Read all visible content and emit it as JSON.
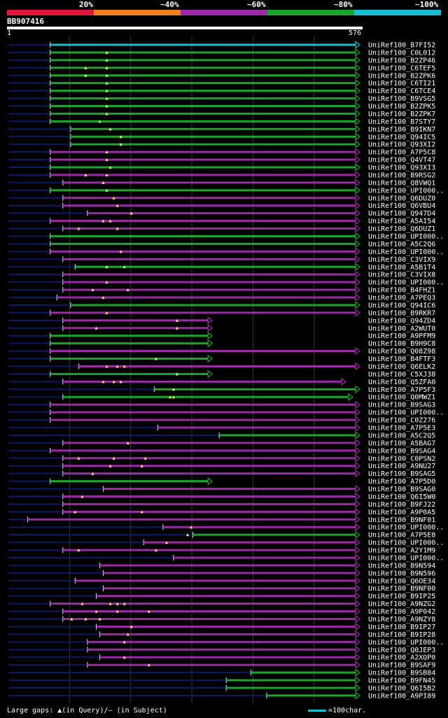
{
  "legend": {
    "segments": [
      {
        "label": "20%",
        "color": "#e3173e"
      },
      {
        "label": "~40%",
        "color": "#f07f1d"
      },
      {
        "label": "~60%",
        "color": "#9b2aa4"
      },
      {
        "label": "~80%",
        "color": "#1aa52e"
      },
      {
        "label": "~100%",
        "color": "#17becf"
      }
    ]
  },
  "query": {
    "id": "BB907416",
    "start": "1",
    "end": "576"
  },
  "footer": {
    "gaps_text": "Large gaps: ▲(in Query)/— (in Subject)",
    "scale_text": "=100char."
  },
  "colors": {
    "purple": "#9b2aa4",
    "green": "#1aa52e",
    "cyan": "#17becf",
    "navy": "#0b1b63",
    "mark": "#ffff66"
  },
  "hits": [
    {
      "name": "UniRef100_B7FI52",
      "color": "cyan",
      "start": 0.119,
      "arrow": true
    },
    {
      "name": "UniRef100_C0L012",
      "color": "green",
      "start": 0.119,
      "arrow": true,
      "marks": [
        0.28
      ]
    },
    {
      "name": "UniRef100_B2ZP46",
      "color": "green",
      "start": 0.119,
      "arrow": true,
      "marks": [
        0.28
      ]
    },
    {
      "name": "UniRef100_C6TEF5",
      "color": "green",
      "start": 0.119,
      "arrow": true,
      "marks": [
        0.22,
        0.28
      ]
    },
    {
      "name": "UniRef100_B2ZPK6",
      "color": "green",
      "start": 0.119,
      "arrow": true,
      "marks": [
        0.22,
        0.28
      ]
    },
    {
      "name": "UniRef100_C6TI21",
      "color": "green",
      "start": 0.119,
      "arrow": true,
      "marks": [
        0.28
      ]
    },
    {
      "name": "UniRef100_C6TCE4",
      "color": "green",
      "start": 0.119,
      "arrow": true,
      "marks": [
        0.28
      ]
    },
    {
      "name": "UniRef100_B9VSG5",
      "color": "green",
      "start": 0.119,
      "arrow": true,
      "marks": [
        0.28
      ]
    },
    {
      "name": "UniRef100_B2ZPK5",
      "color": "green",
      "start": 0.119,
      "arrow": true,
      "marks": [
        0.28
      ]
    },
    {
      "name": "UniRef100_B2ZPK7",
      "color": "green",
      "start": 0.119,
      "arrow": true,
      "marks": [
        0.28
      ]
    },
    {
      "name": "UniRef100_B7STY7",
      "color": "green",
      "start": 0.119,
      "arrow": true,
      "marks": [
        0.26
      ]
    },
    {
      "name": "UniRef100_B9IKN7",
      "color": "green",
      "start": 0.177,
      "arrow": true,
      "marks": [
        0.29
      ]
    },
    {
      "name": "UniRef100_Q94IC5",
      "color": "green",
      "start": 0.177,
      "arrow": true,
      "marks": [
        0.32
      ]
    },
    {
      "name": "UniRef100_Q93XI2",
      "color": "green",
      "start": 0.177,
      "arrow": true,
      "marks": [
        0.32
      ]
    },
    {
      "name": "UniRef100_A7P5C8",
      "color": "purple",
      "start": 0.119,
      "arrow": true,
      "marks": [
        0.28
      ]
    },
    {
      "name": "UniRef100_Q4VT47",
      "color": "purple",
      "start": 0.119,
      "arrow": true,
      "marks": [
        0.28
      ]
    },
    {
      "name": "UniRef100_Q93XI3",
      "color": "green",
      "start": 0.119,
      "arrow": true,
      "marks": [
        0.29
      ]
    },
    {
      "name": "UniRef100_B9RSG2",
      "color": "purple",
      "start": 0.119,
      "arrow": true,
      "marks": [
        0.22,
        0.28
      ]
    },
    {
      "name": "UniRef100_Q8VWQ1",
      "color": "purple",
      "start": 0.155,
      "arrow": true,
      "marks": [
        0.27
      ]
    },
    {
      "name": "UniRef100_UPI000..",
      "color": "green",
      "start": 0.119,
      "arrow": true,
      "marks": [
        0.28
      ]
    },
    {
      "name": "UniRef100_Q6DUZ0",
      "color": "purple",
      "start": 0.155,
      "arrow": true,
      "marks": [
        0.3
      ]
    },
    {
      "name": "UniRef100_Q6VBU4",
      "color": "purple",
      "start": 0.155,
      "arrow": true,
      "marks": [
        0.31
      ]
    },
    {
      "name": "UniRef100_Q947D4",
      "color": "purple",
      "start": 0.225,
      "arrow": true,
      "marks": [
        0.35
      ]
    },
    {
      "name": "UniRef100_A5AI54",
      "color": "purple",
      "start": 0.119,
      "arrow": true,
      "marks": [
        0.27,
        0.29
      ]
    },
    {
      "name": "UniRef100_Q6DUZ1",
      "color": "purple",
      "start": 0.155,
      "arrow": true,
      "marks": [
        0.2,
        0.31
      ]
    },
    {
      "name": "UniRef100_UPI000..",
      "color": "green",
      "start": 0.119,
      "arrow": true
    },
    {
      "name": "UniRef100_A5C2Q6",
      "color": "green",
      "start": 0.119,
      "arrow": true
    },
    {
      "name": "UniRef100_UPI000..",
      "color": "purple",
      "start": 0.119,
      "arrow": true,
      "marks": [
        0.32
      ]
    },
    {
      "name": "UniRef100_C3VIX9",
      "color": "purple",
      "start": 0.155,
      "arrow": true
    },
    {
      "name": "UniRef100_A5B1T4",
      "color": "green",
      "start": 0.19,
      "arrow": true,
      "marks": [
        0.28,
        0.33
      ]
    },
    {
      "name": "UniRef100_C3VIX8",
      "color": "purple",
      "start": 0.155,
      "arrow": true
    },
    {
      "name": "UniRef100_UPI000..",
      "color": "purple",
      "start": 0.155,
      "arrow": true,
      "marks": [
        0.28
      ]
    },
    {
      "name": "UniRef100_B4FHZ1",
      "color": "purple",
      "start": 0.155,
      "arrow": true,
      "marks": [
        0.24,
        0.34
      ]
    },
    {
      "name": "UniRef100_A7PEQ3",
      "color": "purple",
      "start": 0.138,
      "arrow": true,
      "marks": [
        0.27
      ]
    },
    {
      "name": "UniRef100_Q94IC6",
      "color": "green",
      "start": 0.177,
      "arrow": true
    },
    {
      "name": "UniRef100_B9RKR7",
      "color": "purple",
      "start": 0.119,
      "arrow": true,
      "marks": [
        0.28
      ]
    },
    {
      "name": "UniRef100_Q94ZD4",
      "color": "purple",
      "start": 0.155,
      "end": 0.58,
      "arrow": true,
      "marks": [
        0.48
      ]
    },
    {
      "name": "UniRef100_A2WUT0",
      "color": "purple",
      "start": 0.155,
      "end": 0.58,
      "arrow": true,
      "marks": [
        0.25,
        0.48
      ]
    },
    {
      "name": "UniRef100_A9PFM9",
      "color": "green",
      "start": 0.119,
      "end": 0.58,
      "arrow": true
    },
    {
      "name": "UniRef100_B9H9C8",
      "color": "green",
      "start": 0.119,
      "end": 0.58,
      "arrow": true
    },
    {
      "name": "UniRef100_Q08Z98",
      "color": "purple",
      "start": 0.119,
      "arrow": true
    },
    {
      "name": "UniRef100_B4FTF3",
      "color": "green",
      "start": 0.119,
      "end": 0.58,
      "arrow": true,
      "marks": [
        0.42
      ]
    },
    {
      "name": "UniRef100_Q6ELK2",
      "color": "purple",
      "start": 0.2,
      "arrow": true,
      "marks": [
        0.28,
        0.31,
        0.33
      ]
    },
    {
      "name": "UniRef100_C5XJ38",
      "color": "green",
      "start": 0.119,
      "end": 0.58,
      "arrow": true,
      "marks": [
        0.48
      ]
    },
    {
      "name": "UniRef100_Q5ZFA0",
      "color": "purple",
      "start": 0.155,
      "end": 0.96,
      "arrow": true,
      "marks": [
        0.27,
        0.3,
        0.32
      ]
    },
    {
      "name": "UniRef100_A7P5F3",
      "color": "green",
      "start": 0.415,
      "arrow": true,
      "marks": [
        0.47
      ]
    },
    {
      "name": "UniRef100_Q0MWZ1",
      "color": "green",
      "start": 0.155,
      "end": 0.98,
      "arrow": true,
      "marks": [
        0.46,
        0.47
      ]
    },
    {
      "name": "UniRef100_B9SAG3",
      "color": "purple",
      "start": 0.119,
      "arrow": true
    },
    {
      "name": "UniRef100_UPI000..",
      "color": "purple",
      "start": 0.119,
      "arrow": true
    },
    {
      "name": "UniRef100_C0Z276",
      "color": "purple",
      "start": 0.119,
      "arrow": true
    },
    {
      "name": "UniRef100_A7P5E3",
      "color": "purple",
      "start": 0.425,
      "arrow": true
    },
    {
      "name": "UniRef100_A5C2Q5",
      "color": "green",
      "start": 0.6,
      "arrow": true
    },
    {
      "name": "UniRef100_A5BAG7",
      "color": "purple",
      "start": 0.155,
      "arrow": true,
      "marks": [
        0.34
      ]
    },
    {
      "name": "UniRef100_B9SAG4",
      "color": "purple",
      "start": 0.119,
      "arrow": true
    },
    {
      "name": "UniRef100_C0PSN2",
      "color": "purple",
      "start": 0.155,
      "arrow": true,
      "marks": [
        0.2,
        0.3,
        0.39
      ]
    },
    {
      "name": "UniRef100_A9NU27",
      "color": "purple",
      "start": 0.155,
      "arrow": true,
      "marks": [
        0.29,
        0.38
      ]
    },
    {
      "name": "UniRef100_B9SAG5",
      "color": "purple",
      "start": 0.155,
      "arrow": true,
      "marks": [
        0.24
      ]
    },
    {
      "name": "UniRef100_A7P5D0",
      "color": "green",
      "start": 0.119,
      "end": 0.58,
      "arrow": true
    },
    {
      "name": "UniRef100_B9SAG0",
      "color": "purple",
      "start": 0.27,
      "arrow": true
    },
    {
      "name": "UniRef100_Q6I5W0",
      "color": "purple",
      "start": 0.155,
      "arrow": true,
      "marks": [
        0.21
      ]
    },
    {
      "name": "UniRef100_B9FJ22",
      "color": "purple",
      "start": 0.155,
      "arrow": true
    },
    {
      "name": "UniRef100_A9P0A5",
      "color": "purple",
      "start": 0.155,
      "arrow": true,
      "marks": [
        0.19,
        0.38
      ]
    },
    {
      "name": "UniRef100_B9NF01",
      "color": "purple",
      "start": 0.055,
      "arrow": true
    },
    {
      "name": "UniRef100_UPI000..",
      "color": "purple",
      "start": 0.44,
      "arrow": true,
      "marks": [
        0.52
      ]
    },
    {
      "name": "UniRef100_A7P5E8",
      "color": "green",
      "start": 0.525,
      "arrow": true,
      "marks": [
        0.51
      ]
    },
    {
      "name": "UniRef100_UPI000..",
      "color": "purple",
      "start": 0.385,
      "arrow": true,
      "marks": [
        0.45
      ]
    },
    {
      "name": "UniRef100_A2Y1M9",
      "color": "purple",
      "start": 0.155,
      "arrow": true,
      "marks": [
        0.2,
        0.42
      ]
    },
    {
      "name": "UniRef100_UPI000..",
      "color": "purple",
      "start": 0.47,
      "arrow": true
    },
    {
      "name": "UniRef100_B9N594",
      "color": "purple",
      "start": 0.26,
      "arrow": true
    },
    {
      "name": "UniRef100_B9N596",
      "color": "purple",
      "start": 0.27,
      "arrow": true
    },
    {
      "name": "UniRef100_Q6OE34",
      "color": "purple",
      "start": 0.19,
      "arrow": true
    },
    {
      "name": "UniRef100_B9NF00",
      "color": "purple",
      "start": 0.27,
      "arrow": true
    },
    {
      "name": "UniRef100_B9IP25",
      "color": "purple",
      "start": 0.25,
      "arrow": true
    },
    {
      "name": "UniRef100_A9NZG2",
      "color": "purple",
      "start": 0.119,
      "arrow": true,
      "marks": [
        0.21,
        0.29,
        0.31,
        0.33
      ]
    },
    {
      "name": "UniRef100_A9P042",
      "color": "purple",
      "start": 0.155,
      "arrow": true,
      "marks": [
        0.25,
        0.31,
        0.4
      ]
    },
    {
      "name": "UniRef100_A9NZY8",
      "color": "purple",
      "start": 0.155,
      "arrow": true,
      "marks": [
        0.18,
        0.22,
        0.26
      ]
    },
    {
      "name": "UniRef100_B9IP27",
      "color": "purple",
      "start": 0.25,
      "arrow": true,
      "marks": [
        0.35
      ]
    },
    {
      "name": "UniRef100_B9IP28",
      "color": "purple",
      "start": 0.26,
      "arrow": true,
      "marks": [
        0.34
      ]
    },
    {
      "name": "UniRef100_UPI000..",
      "color": "purple",
      "start": 0.225,
      "arrow": true,
      "marks": [
        0.33
      ]
    },
    {
      "name": "UniRef100_Q0JEP3",
      "color": "purple",
      "start": 0.225,
      "arrow": true
    },
    {
      "name": "UniRef100_A2XQP0",
      "color": "purple",
      "start": 0.26,
      "arrow": true,
      "marks": [
        0.33
      ]
    },
    {
      "name": "UniRef100_B9SAF9",
      "color": "purple",
      "start": 0.225,
      "arrow": true,
      "marks": [
        0.4
      ]
    },
    {
      "name": "UniRef100_B9SB84",
      "color": "green",
      "start": 0.69,
      "arrow": true
    },
    {
      "name": "UniRef100_B9FN45",
      "color": "green",
      "start": 0.62,
      "arrow": true
    },
    {
      "name": "UniRef100_Q6I5B2",
      "color": "green",
      "start": 0.62,
      "arrow": true
    },
    {
      "name": "UniRef100_A9PI89",
      "color": "green",
      "start": 0.735,
      "arrow": true
    }
  ]
}
